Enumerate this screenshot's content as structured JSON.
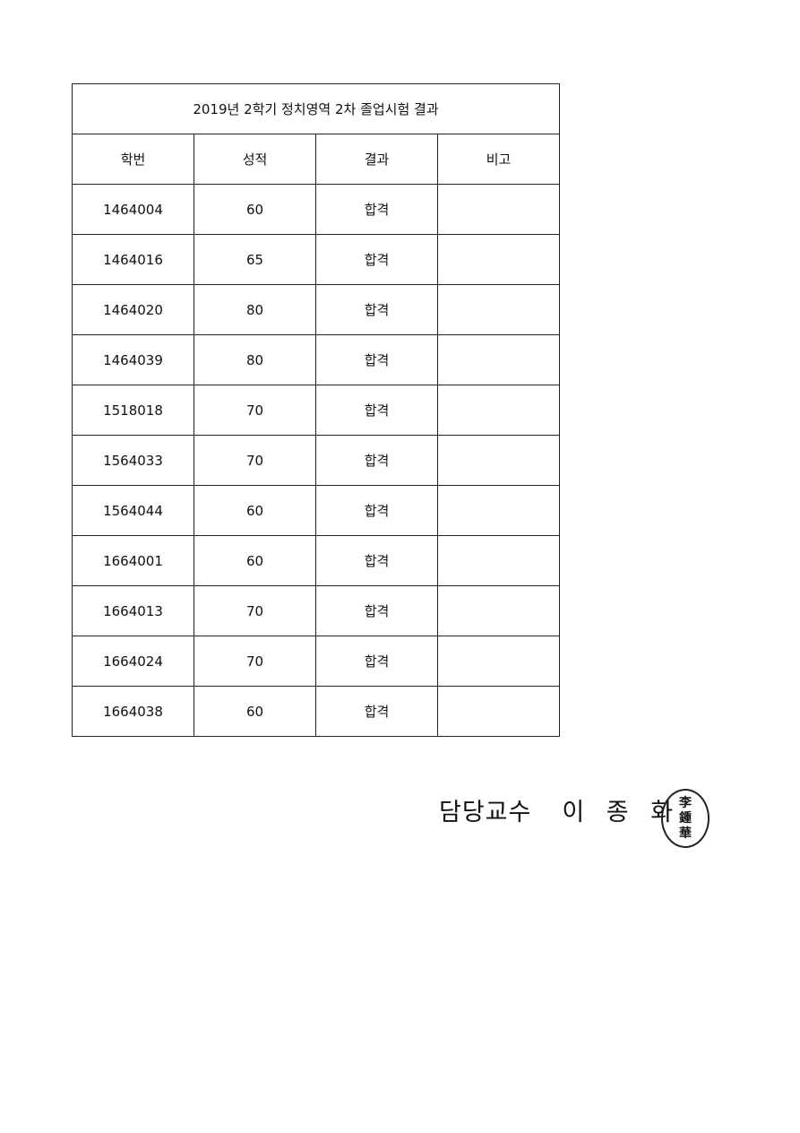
{
  "table": {
    "title": "2019년 2학기 정치영역 2차 졸업시험 결과",
    "headers": [
      "학번",
      "성적",
      "결과",
      "비고"
    ],
    "rows": [
      [
        "1464004",
        "60",
        "합격",
        ""
      ],
      [
        "1464016",
        "65",
        "합격",
        ""
      ],
      [
        "1464020",
        "80",
        "합격",
        ""
      ],
      [
        "1464039",
        "80",
        "합격",
        ""
      ],
      [
        "1518018",
        "70",
        "합격",
        ""
      ],
      [
        "1564033",
        "70",
        "합격",
        ""
      ],
      [
        "1564044",
        "60",
        "합격",
        ""
      ],
      [
        "1664001",
        "60",
        "합격",
        ""
      ],
      [
        "1664013",
        "70",
        "합격",
        ""
      ],
      [
        "1664024",
        "70",
        "합격",
        ""
      ],
      [
        "1664038",
        "60",
        "합격",
        ""
      ]
    ]
  },
  "signature": {
    "role": "담당교수",
    "name": "이 종 화",
    "seal_text": "李鍾華"
  }
}
